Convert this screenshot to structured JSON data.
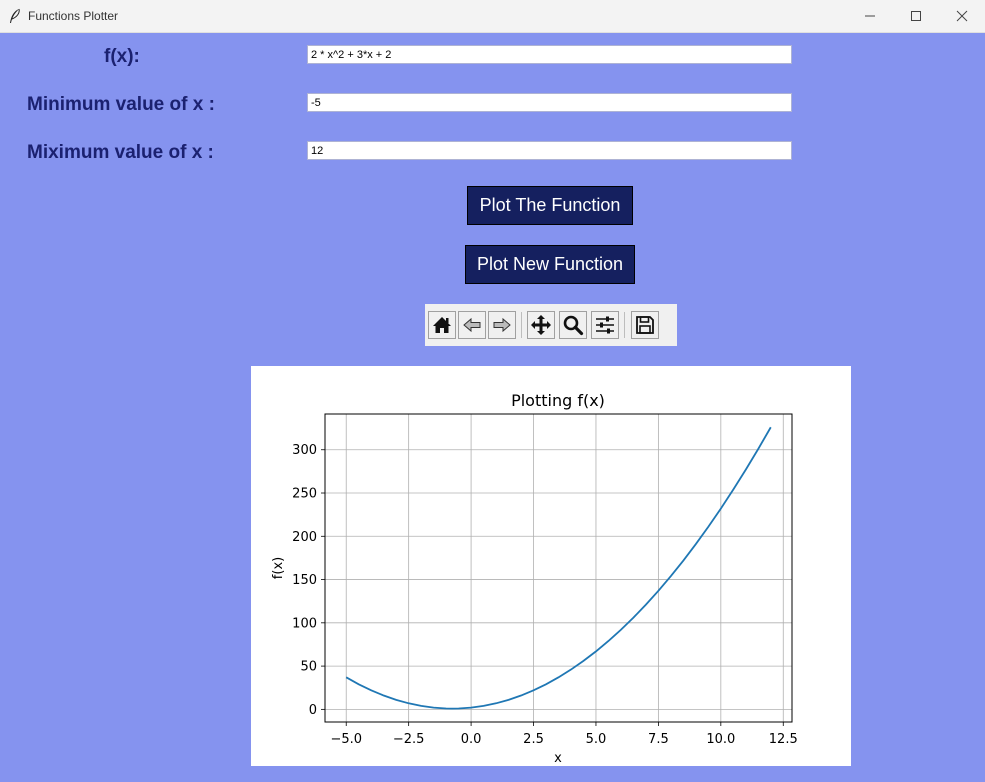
{
  "window": {
    "title": "Functions Plotter",
    "icon": "feather-icon"
  },
  "form": {
    "fx_label": "f(x):",
    "fx_value": "2 * x^2 + 3*x + 2",
    "xmin_label": "Minimum value of x :",
    "xmin_value": "-5",
    "xmax_label": "Miximum value of x :",
    "xmax_value": "12"
  },
  "buttons": {
    "plot": "Plot The Function",
    "plot_new": "Plot New Function"
  },
  "toolbar": {
    "icons": [
      "home-icon",
      "back-arrow-icon",
      "forward-arrow-icon",
      "pan-icon",
      "zoom-icon",
      "configure-subplots-icon",
      "save-icon"
    ]
  },
  "colors": {
    "background": "#8593ef",
    "label": "#1b2170",
    "button": "#15205f",
    "line": "#1f77b4"
  },
  "chart_data": {
    "type": "line",
    "title": "Plotting f(x)",
    "xlabel": "x",
    "ylabel": "f(x)",
    "function": "2 * x^2 + 3*x + 2",
    "xlim": [
      -5.85,
      12.85
    ],
    "ylim": [
      -14.6,
      341.3
    ],
    "xticks": [
      -5.0,
      -2.5,
      0.0,
      2.5,
      5.0,
      7.5,
      10.0,
      12.5
    ],
    "xtick_labels": [
      "−5.0",
      "−2.5",
      "0.0",
      "2.5",
      "5.0",
      "7.5",
      "10.0",
      "12.5"
    ],
    "yticks": [
      0,
      50,
      100,
      150,
      200,
      250,
      300
    ],
    "ytick_labels": [
      "0",
      "50",
      "100",
      "150",
      "200",
      "250",
      "300"
    ],
    "grid": true,
    "series": [
      {
        "x": [
          -5,
          -4.5,
          -4,
          -3.5,
          -3,
          -2.5,
          -2,
          -1.5,
          -1,
          -0.75,
          -0.5,
          0,
          0.5,
          1,
          1.5,
          2,
          2.5,
          3,
          3.5,
          4,
          4.5,
          5,
          5.5,
          6,
          6.5,
          7,
          7.5,
          8,
          8.5,
          9,
          9.5,
          10,
          10.5,
          11,
          11.5,
          12
        ],
        "y": [
          37,
          29,
          22,
          16,
          11,
          7,
          4,
          2,
          1,
          0.875,
          1,
          2,
          4,
          7,
          11,
          16,
          22,
          29,
          37,
          46,
          56,
          67,
          79,
          92,
          106,
          121,
          137,
          154,
          172,
          191,
          211,
          232,
          254,
          277,
          301,
          326
        ]
      }
    ]
  }
}
